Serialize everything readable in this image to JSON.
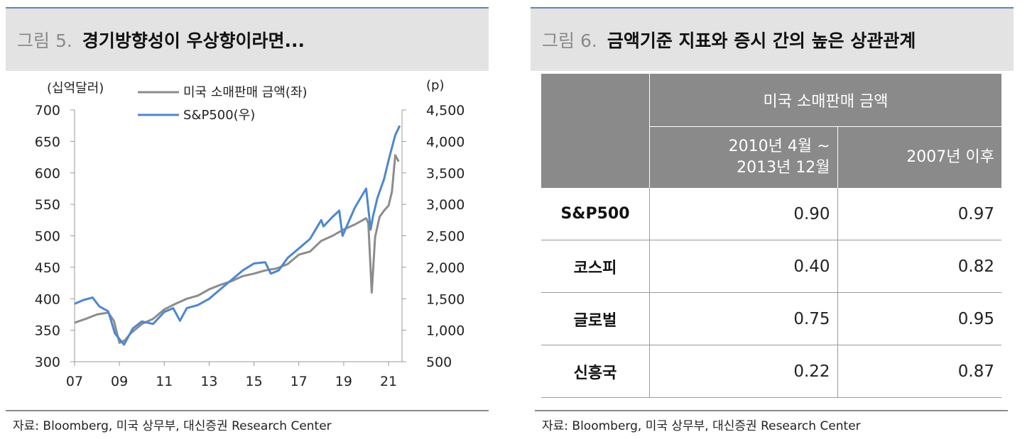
{
  "left_panel": {
    "figure_label": "그림 5.",
    "title": "경기방향성이 우상향이라면...",
    "source": "자료: Bloomberg, 미국 상무부, 대신증권 Research Center"
  },
  "right_panel": {
    "figure_label": "그림 6.",
    "title": "금액기준 지표와 증시 간의 높은 상관관계",
    "source": "자료: Bloomberg, 미국 상무부, 대신증권 Research Center"
  },
  "chart_data": {
    "type": "line",
    "y_left_unit": "(십억달러)",
    "y_right_unit": "(p)",
    "y_left_range": [
      300,
      700
    ],
    "y_right_range": [
      500,
      4500
    ],
    "y_left_ticks": [
      "700",
      "650",
      "600",
      "550",
      "500",
      "450",
      "400",
      "350",
      "300"
    ],
    "y_right_ticks": [
      "4,500",
      "4,000",
      "3,500",
      "3,000",
      "2,500",
      "2,000",
      "1,500",
      "1,000",
      "500"
    ],
    "x_ticks": [
      "07",
      "09",
      "11",
      "13",
      "15",
      "17",
      "19",
      "21"
    ],
    "x_range": [
      2007.0,
      2021.6
    ],
    "legend": [
      "미국 소매판매 금액(좌)",
      "S&P500(우)"
    ],
    "colors": {
      "retail": "#8c8c8c",
      "sp500": "#4f86cf"
    },
    "series": [
      {
        "name": "미국 소매판매 금액(좌)",
        "axis": "left",
        "x": [
          2007.0,
          2007.5,
          2008.0,
          2008.5,
          2008.75,
          2009.0,
          2009.25,
          2009.5,
          2010.0,
          2010.5,
          2011.0,
          2011.5,
          2012.0,
          2012.5,
          2013.0,
          2013.5,
          2014.0,
          2014.5,
          2015.0,
          2015.5,
          2016.0,
          2016.5,
          2017.0,
          2017.5,
          2018.0,
          2018.5,
          2019.0,
          2019.5,
          2020.0,
          2020.1,
          2020.25,
          2020.4,
          2020.6,
          2020.8,
          2021.0,
          2021.15,
          2021.3,
          2021.45
        ],
        "values": [
          362,
          368,
          375,
          378,
          365,
          330,
          334,
          345,
          360,
          368,
          383,
          392,
          400,
          405,
          415,
          422,
          428,
          436,
          440,
          445,
          448,
          455,
          470,
          475,
          492,
          500,
          510,
          518,
          528,
          520,
          410,
          498,
          530,
          540,
          548,
          570,
          628,
          618
        ]
      },
      {
        "name": "S&P500(우)",
        "axis": "right",
        "x": [
          2007.0,
          2007.4,
          2007.8,
          2008.1,
          2008.5,
          2008.8,
          2009.0,
          2009.2,
          2009.6,
          2010.0,
          2010.5,
          2011.0,
          2011.4,
          2011.7,
          2012.0,
          2012.5,
          2013.0,
          2013.5,
          2014.0,
          2014.5,
          2015.0,
          2015.5,
          2015.75,
          2016.1,
          2016.5,
          2017.0,
          2017.5,
          2018.0,
          2018.1,
          2018.5,
          2018.8,
          2018.95,
          2019.5,
          2020.0,
          2020.2,
          2020.3,
          2020.5,
          2020.8,
          2021.0,
          2021.3,
          2021.5
        ],
        "values": [
          1420,
          1480,
          1520,
          1380,
          1300,
          950,
          860,
          770,
          1030,
          1140,
          1100,
          1290,
          1350,
          1150,
          1350,
          1400,
          1500,
          1650,
          1800,
          1950,
          2060,
          2080,
          1900,
          1950,
          2150,
          2300,
          2450,
          2750,
          2650,
          2800,
          2900,
          2500,
          2950,
          3250,
          2600,
          2800,
          3100,
          3400,
          3700,
          4100,
          4250
        ]
      }
    ]
  },
  "table": {
    "group_header": "미국 소매판매 금액",
    "col1_line1": "2010년 4월 ~",
    "col1_line2": "2013년 12월",
    "col2": "2007년 이후",
    "rows": [
      {
        "label": "S&P500",
        "v1": "0.90",
        "v2": "0.97"
      },
      {
        "label": "코스피",
        "v1": "0.40",
        "v2": "0.82"
      },
      {
        "label": "글로벌",
        "v1": "0.75",
        "v2": "0.95"
      },
      {
        "label": "신흥국",
        "v1": "0.22",
        "v2": "0.87"
      }
    ]
  }
}
